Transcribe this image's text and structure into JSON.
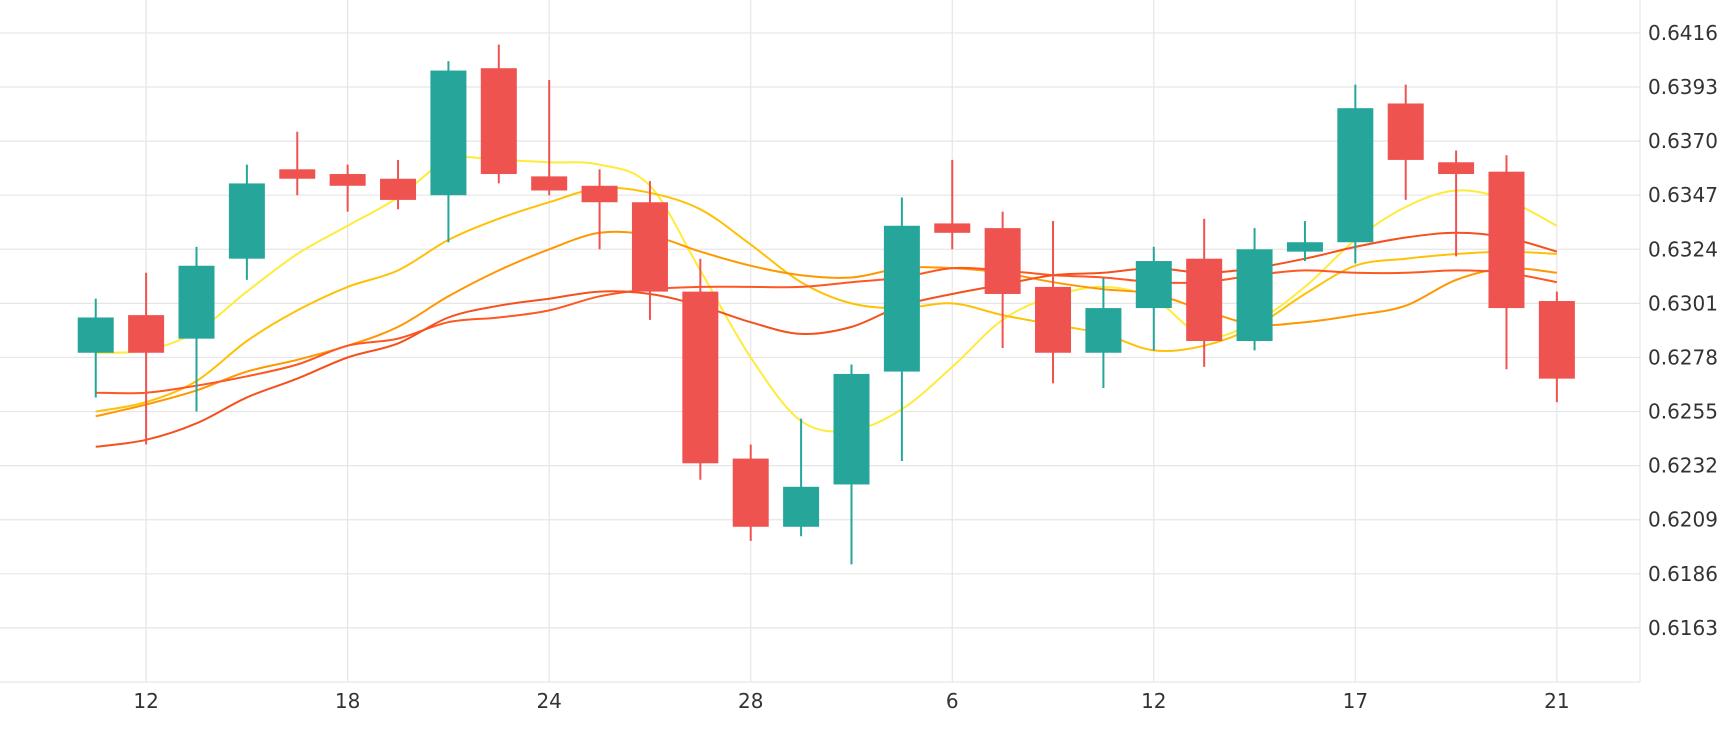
{
  "chart_data": {
    "type": "candlestick",
    "y_ticks": [
      "0.6416",
      "0.6393",
      "0.6370",
      "0.6347",
      "0.6324",
      "0.6301",
      "0.6278",
      "0.6255",
      "0.6232",
      "0.6209",
      "0.6186",
      "0.6163"
    ],
    "ylim": [
      0.614,
      0.643
    ],
    "x_ticks": [
      {
        "label": "12",
        "index": 1
      },
      {
        "label": "18",
        "index": 5
      },
      {
        "label": "24",
        "index": 9
      },
      {
        "label": "28",
        "index": 13
      },
      {
        "label": "6",
        "index": 17
      },
      {
        "label": "12",
        "index": 21
      },
      {
        "label": "17",
        "index": 25
      },
      {
        "label": "21",
        "index": 29
      }
    ],
    "xlim": [
      -1.9,
      30.65
    ],
    "grid": true,
    "y_axis_position": "right",
    "candles": [
      {
        "o": 0.628,
        "h": 0.6303,
        "l": 0.6261,
        "c": 0.6295
      },
      {
        "o": 0.6296,
        "h": 0.6314,
        "l": 0.6241,
        "c": 0.628
      },
      {
        "o": 0.6286,
        "h": 0.6325,
        "l": 0.6255,
        "c": 0.6317
      },
      {
        "o": 0.632,
        "h": 0.636,
        "l": 0.6311,
        "c": 0.6352
      },
      {
        "o": 0.6358,
        "h": 0.6374,
        "l": 0.6347,
        "c": 0.6354
      },
      {
        "o": 0.6356,
        "h": 0.636,
        "l": 0.634,
        "c": 0.6351
      },
      {
        "o": 0.6354,
        "h": 0.6362,
        "l": 0.6341,
        "c": 0.6345
      },
      {
        "o": 0.6347,
        "h": 0.6404,
        "l": 0.6327,
        "c": 0.64
      },
      {
        "o": 0.6401,
        "h": 0.6411,
        "l": 0.6352,
        "c": 0.6356
      },
      {
        "o": 0.6355,
        "h": 0.6396,
        "l": 0.6347,
        "c": 0.6349
      },
      {
        "o": 0.6351,
        "h": 0.6358,
        "l": 0.6324,
        "c": 0.6344
      },
      {
        "o": 0.6344,
        "h": 0.6353,
        "l": 0.6294,
        "c": 0.6306
      },
      {
        "o": 0.6306,
        "h": 0.632,
        "l": 0.6226,
        "c": 0.6233
      },
      {
        "o": 0.6235,
        "h": 0.6241,
        "l": 0.62,
        "c": 0.6206
      },
      {
        "o": 0.6206,
        "h": 0.6252,
        "l": 0.6202,
        "c": 0.6223
      },
      {
        "o": 0.6224,
        "h": 0.6275,
        "l": 0.619,
        "c": 0.6271
      },
      {
        "o": 0.6272,
        "h": 0.6346,
        "l": 0.6234,
        "c": 0.6334
      },
      {
        "o": 0.6335,
        "h": 0.6362,
        "l": 0.6324,
        "c": 0.6331
      },
      {
        "o": 0.6333,
        "h": 0.634,
        "l": 0.6282,
        "c": 0.6305
      },
      {
        "o": 0.6308,
        "h": 0.6336,
        "l": 0.6267,
        "c": 0.628
      },
      {
        "o": 0.628,
        "h": 0.6312,
        "l": 0.6265,
        "c": 0.6299
      },
      {
        "o": 0.6299,
        "h": 0.6325,
        "l": 0.6281,
        "c": 0.6319
      },
      {
        "o": 0.632,
        "h": 0.6337,
        "l": 0.6274,
        "c": 0.6285
      },
      {
        "o": 0.6285,
        "h": 0.6333,
        "l": 0.6281,
        "c": 0.6324
      },
      {
        "o": 0.6323,
        "h": 0.6336,
        "l": 0.6319,
        "c": 0.6327
      },
      {
        "o": 0.6327,
        "h": 0.6394,
        "l": 0.6318,
        "c": 0.6384
      },
      {
        "o": 0.6386,
        "h": 0.6394,
        "l": 0.6345,
        "c": 0.6362
      },
      {
        "o": 0.6361,
        "h": 0.6366,
        "l": 0.6321,
        "c": 0.6356
      },
      {
        "o": 0.6357,
        "h": 0.6364,
        "l": 0.6273,
        "c": 0.6299
      },
      {
        "o": 0.6302,
        "h": 0.6306,
        "l": 0.6259,
        "c": 0.6269
      }
    ],
    "series": [
      {
        "color": "#ffeb3b",
        "values": [
          0.628,
          0.6281,
          0.6289,
          0.6306,
          0.6322,
          0.6334,
          0.6346,
          0.6362,
          0.6362,
          0.6361,
          0.636,
          0.6351,
          0.6315,
          0.6278,
          0.6251,
          0.6247,
          0.6256,
          0.6274,
          0.6294,
          0.6304,
          0.6308,
          0.6303,
          0.6287,
          0.6293,
          0.6308,
          0.6328,
          0.6342,
          0.6349,
          0.6345,
          0.6334
        ]
      },
      {
        "color": "#ffc107",
        "values": [
          0.6255,
          0.6259,
          0.6268,
          0.6285,
          0.6298,
          0.6308,
          0.6315,
          0.6328,
          0.6337,
          0.6344,
          0.635,
          0.6348,
          0.6341,
          0.6326,
          0.631,
          0.6301,
          0.6299,
          0.6301,
          0.6296,
          0.6292,
          0.6288,
          0.6281,
          0.6283,
          0.6291,
          0.6305,
          0.6317,
          0.632,
          0.6322,
          0.6323,
          0.6322
        ]
      },
      {
        "color": "#ff9800",
        "values": [
          0.6253,
          0.6258,
          0.6264,
          0.6272,
          0.6277,
          0.6283,
          0.6291,
          0.6304,
          0.6315,
          0.6324,
          0.6331,
          0.633,
          0.6323,
          0.6317,
          0.6313,
          0.6312,
          0.6316,
          0.6316,
          0.6314,
          0.631,
          0.6307,
          0.6305,
          0.6298,
          0.6292,
          0.6293,
          0.6296,
          0.63,
          0.6311,
          0.6316,
          0.6314
        ]
      },
      {
        "color": "#ff5722",
        "values": [
          0.6263,
          0.6263,
          0.6266,
          0.627,
          0.6275,
          0.6283,
          0.6286,
          0.6293,
          0.6295,
          0.6298,
          0.6304,
          0.6307,
          0.6308,
          0.6308,
          0.6308,
          0.631,
          0.6312,
          0.6316,
          0.6315,
          0.6313,
          0.6312,
          0.631,
          0.631,
          0.6313,
          0.6315,
          0.6314,
          0.6314,
          0.6315,
          0.6314,
          0.631
        ]
      },
      {
        "color": "#f4511e",
        "values": [
          0.624,
          0.6243,
          0.625,
          0.6261,
          0.6269,
          0.6278,
          0.6284,
          0.6295,
          0.63,
          0.6303,
          0.6306,
          0.6305,
          0.63,
          0.6293,
          0.6288,
          0.6291,
          0.63,
          0.6305,
          0.6309,
          0.6313,
          0.6314,
          0.6316,
          0.6314,
          0.6316,
          0.632,
          0.6325,
          0.6329,
          0.6331,
          0.6329,
          0.6323
        ]
      }
    ],
    "up_color": "#26a69a",
    "down_color": "#ef5350"
  }
}
